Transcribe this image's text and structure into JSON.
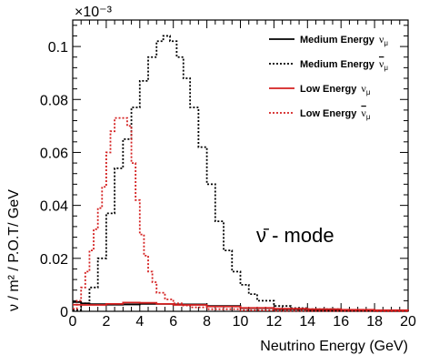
{
  "chart_data": {
    "type": "line",
    "title": "",
    "xlabel": "Neutrino Energy (GeV)",
    "ylabel": "ν / m² / P.O.T/ GeV",
    "y_multiplier": "×10⁻³",
    "xlim": [
      0,
      20
    ],
    "ylim": [
      0,
      0.11
    ],
    "x_ticks": [
      "0",
      "2",
      "4",
      "6",
      "8",
      "10",
      "12",
      "14",
      "16",
      "18",
      "20"
    ],
    "y_ticks": [
      "0.02",
      "0.04",
      "0.06",
      "0.08",
      "0.1"
    ],
    "y_tick_values": [
      0.02,
      0.04,
      0.06,
      0.08,
      0.1
    ],
    "grid": false,
    "legend_position": "top-right",
    "annotation": "ν̄ - mode",
    "series": [
      {
        "name": "Medium Energy ν_μ",
        "name_main": "Medium Energy",
        "name_symbol": "ν",
        "name_sub": "μ",
        "name_bar": false,
        "color": "#000000",
        "dash": "solid",
        "x": [
          0.0,
          0.5,
          1.0,
          2.0,
          3.0,
          4.0,
          5.0,
          6.0,
          8.0,
          10.0,
          12.0,
          14.0,
          16.0,
          18.0,
          20.0
        ],
        "values": [
          0.0035,
          0.003,
          0.0027,
          0.0025,
          0.0026,
          0.0028,
          0.0028,
          0.0026,
          0.002,
          0.0012,
          0.0008,
          0.0005,
          0.0003,
          0.0002,
          0.0001
        ]
      },
      {
        "name": "Medium Energy ν̄_μ",
        "name_main": "Medium Energy",
        "name_symbol": "ν",
        "name_sub": "μ",
        "name_bar": true,
        "color": "#000000",
        "dash": "dotted",
        "x": [
          0.0,
          0.5,
          1.0,
          1.5,
          2.0,
          2.5,
          3.0,
          3.5,
          4.0,
          4.5,
          5.0,
          5.4,
          5.8,
          6.2,
          6.6,
          7.0,
          7.5,
          8.0,
          8.5,
          9.0,
          9.5,
          10.0,
          10.5,
          11.0,
          12.0,
          13.0,
          14.0,
          16.0,
          18.0,
          20.0
        ],
        "values": [
          0.0005,
          0.003,
          0.009,
          0.02,
          0.037,
          0.054,
          0.065,
          0.077,
          0.087,
          0.096,
          0.102,
          0.104,
          0.102,
          0.096,
          0.088,
          0.077,
          0.062,
          0.048,
          0.034,
          0.023,
          0.015,
          0.01,
          0.0065,
          0.004,
          0.002,
          0.0012,
          0.0008,
          0.0004,
          0.0002,
          0.0001
        ]
      },
      {
        "name": "Low Energy ν_μ",
        "name_main": "Low Energy",
        "name_symbol": "ν",
        "name_sub": "μ",
        "name_bar": false,
        "color": "#d42020",
        "dash": "solid",
        "x": [
          0.0,
          0.5,
          1.0,
          2.0,
          3.0,
          4.0,
          5.0,
          6.0,
          8.0,
          10.0,
          12.0,
          14.0,
          16.0,
          18.0,
          20.0
        ],
        "values": [
          0.0025,
          0.0024,
          0.0024,
          0.0028,
          0.0033,
          0.0032,
          0.0028,
          0.0024,
          0.0018,
          0.0013,
          0.001,
          0.0008,
          0.0006,
          0.0004,
          0.0002
        ]
      },
      {
        "name": "Low Energy ν̄_μ",
        "name_main": "Low Energy",
        "name_symbol": "ν",
        "name_sub": "μ",
        "name_bar": true,
        "color": "#d42020",
        "dash": "dotted",
        "x": [
          0.0,
          0.25,
          0.5,
          0.75,
          1.0,
          1.25,
          1.5,
          1.75,
          2.0,
          2.25,
          2.5,
          2.75,
          3.0,
          3.25,
          3.5,
          3.75,
          4.0,
          4.25,
          4.5,
          4.75,
          5.0,
          5.5,
          6.0,
          6.5,
          7.0,
          8.0,
          10.0,
          12.0,
          14.0,
          16.0,
          18.0,
          20.0
        ],
        "values": [
          0.001,
          0.004,
          0.009,
          0.015,
          0.023,
          0.031,
          0.039,
          0.047,
          0.06,
          0.068,
          0.073,
          0.073,
          0.073,
          0.07,
          0.056,
          0.042,
          0.029,
          0.021,
          0.015,
          0.011,
          0.007,
          0.0045,
          0.003,
          0.0022,
          0.0015,
          0.0008,
          0.0004,
          0.0002,
          0.0001,
          0.0001,
          0.0,
          0.0
        ]
      }
    ]
  }
}
